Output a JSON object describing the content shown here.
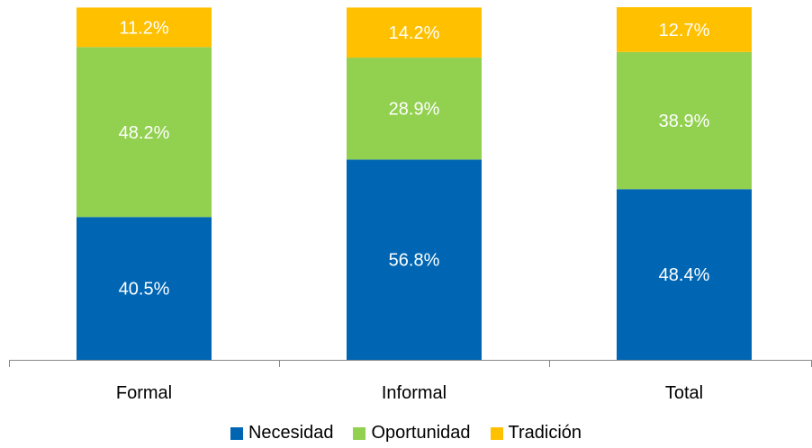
{
  "chart_data": {
    "type": "bar",
    "stacked": true,
    "categories": [
      "Formal",
      "Informal",
      "Total"
    ],
    "series": [
      {
        "name": "Necesidad",
        "color": "#0066B3",
        "values": [
          40.5,
          56.8,
          48.4
        ],
        "labels": [
          "40.5%",
          "56.8%",
          "48.4%"
        ]
      },
      {
        "name": "Oportunidad",
        "color": "#92D050",
        "values": [
          48.2,
          28.9,
          38.9
        ],
        "labels": [
          "48.2%",
          "28.9%",
          "38.9%"
        ]
      },
      {
        "name": "Tradición",
        "color": "#FFC000",
        "values": [
          11.2,
          14.2,
          12.7
        ],
        "labels": [
          "11.2%",
          "14.2%",
          "12.7%"
        ]
      }
    ],
    "ylim": [
      0,
      100
    ],
    "grid": false,
    "legend_position": "bottom"
  }
}
